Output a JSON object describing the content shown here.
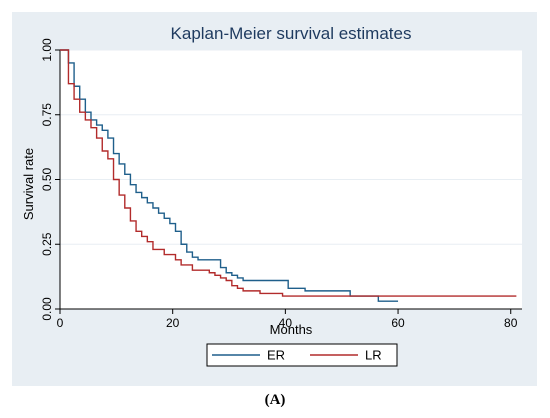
{
  "chart_data": {
    "type": "line",
    "title": "Kaplan-Meier survival estimates",
    "xlabel": "Months",
    "ylabel": "Survival rate",
    "xlim": [
      0,
      82
    ],
    "ylim": [
      0,
      1
    ],
    "x_ticks": [
      0,
      20,
      40,
      60,
      80
    ],
    "y_ticks": [
      0,
      0.25,
      0.5,
      0.75,
      1
    ],
    "y_tick_labels": [
      "0.00",
      "0.25",
      "0.50",
      "0.75",
      "1.00"
    ],
    "grid": true,
    "legend_position": "bottom-outside",
    "colors": {
      "outer_background": "#e8eef3",
      "plot_background": "#ffffff",
      "grid": "#e8eef3",
      "title": "#1e3a5f"
    },
    "series": [
      {
        "name": "ER",
        "color": "#1f5f8b",
        "x": [
          0,
          1.5,
          2.5,
          3.5,
          4.5,
          5.5,
          6.5,
          7.5,
          8.5,
          9.5,
          10.5,
          11.5,
          12.5,
          13.5,
          14.5,
          15.5,
          16.5,
          17.5,
          18.5,
          19.5,
          20.5,
          21.5,
          22.5,
          23.5,
          24.5,
          28.5,
          29.5,
          30.5,
          31.5,
          32.5,
          40.5,
          43.5,
          51.5,
          56.5,
          60
        ],
        "y": [
          1.0,
          0.95,
          0.86,
          0.81,
          0.76,
          0.73,
          0.71,
          0.69,
          0.66,
          0.6,
          0.56,
          0.52,
          0.48,
          0.45,
          0.43,
          0.41,
          0.39,
          0.37,
          0.35,
          0.33,
          0.3,
          0.25,
          0.22,
          0.2,
          0.19,
          0.16,
          0.14,
          0.13,
          0.12,
          0.11,
          0.08,
          0.07,
          0.05,
          0.03,
          0.03
        ]
      },
      {
        "name": "LR",
        "color": "#b22b2b",
        "x": [
          0,
          1.5,
          2.5,
          3.5,
          4.5,
          5.5,
          6.5,
          7.5,
          8.5,
          9.5,
          10.5,
          11.5,
          12.5,
          13.5,
          14.5,
          15.5,
          16.5,
          18.5,
          20.5,
          21.5,
          23.5,
          26.5,
          27.5,
          28.5,
          29.5,
          30.5,
          31.5,
          32.5,
          35.5,
          39.5,
          81
        ],
        "y": [
          1.0,
          0.87,
          0.81,
          0.76,
          0.73,
          0.7,
          0.66,
          0.61,
          0.58,
          0.5,
          0.44,
          0.39,
          0.34,
          0.3,
          0.28,
          0.26,
          0.23,
          0.21,
          0.19,
          0.17,
          0.15,
          0.14,
          0.13,
          0.12,
          0.11,
          0.09,
          0.08,
          0.07,
          0.06,
          0.05,
          0.05
        ]
      }
    ]
  },
  "caption": "(A)"
}
